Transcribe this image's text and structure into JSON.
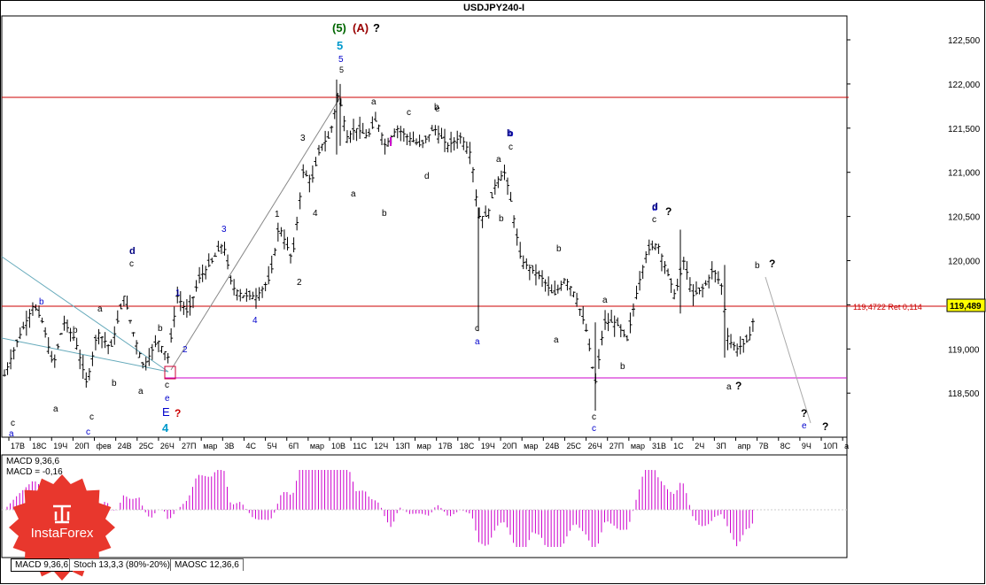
{
  "window": {
    "title": "USDJPY240-I"
  },
  "price_axis": {
    "labels": [
      "122,500",
      "122,000",
      "121,500",
      "121,000",
      "120,500",
      "120,000",
      "119,500",
      "119,000",
      "118,500"
    ],
    "current_price": "119,489",
    "current_price_color": "#ffff00"
  },
  "time_axis": {
    "labels": [
      "17В",
      "18С",
      "19Ч",
      "20П",
      "фев",
      "24В",
      "25С",
      "26Ч",
      "27П",
      "мар",
      "3В",
      "4С",
      "5Ч",
      "6П",
      "мар",
      "10В",
      "11С",
      "12Ч",
      "13П",
      "мар",
      "17В",
      "18С",
      "19Ч",
      "20П",
      "мар",
      "24В",
      "25С",
      "26Ч",
      "27П",
      "мар",
      "31В",
      "1С",
      "2Ч",
      "3П",
      "апр",
      "7В",
      "8С",
      "9Ч",
      "10П",
      "а"
    ]
  },
  "annotations": {
    "level_line_label": "119,4722 Ret 0,114",
    "level_line_color": "#cc0000",
    "support_line_color": "#cc00cc",
    "wave_labels": {
      "top_5_green": "(5)",
      "top_A_red": "(A)",
      "top_q": "?",
      "top_5_blue": "5",
      "five_small_blue": "5",
      "five_small_black": "5",
      "E": "E",
      "four_blue": "4",
      "q_red": "?"
    }
  },
  "indicators": {
    "macd_label": "MACD 9,36,6",
    "macd_value_label": "MACD = -0,16",
    "macd_color": "#cc00cc"
  },
  "tabs": [
    "MACD 9,36,6",
    "Stoch 13,3,3 (80%-20%)",
    "MAOSC 12,36,6"
  ],
  "logo": {
    "text": "InstaForex",
    "color": "#e8372d"
  }
}
